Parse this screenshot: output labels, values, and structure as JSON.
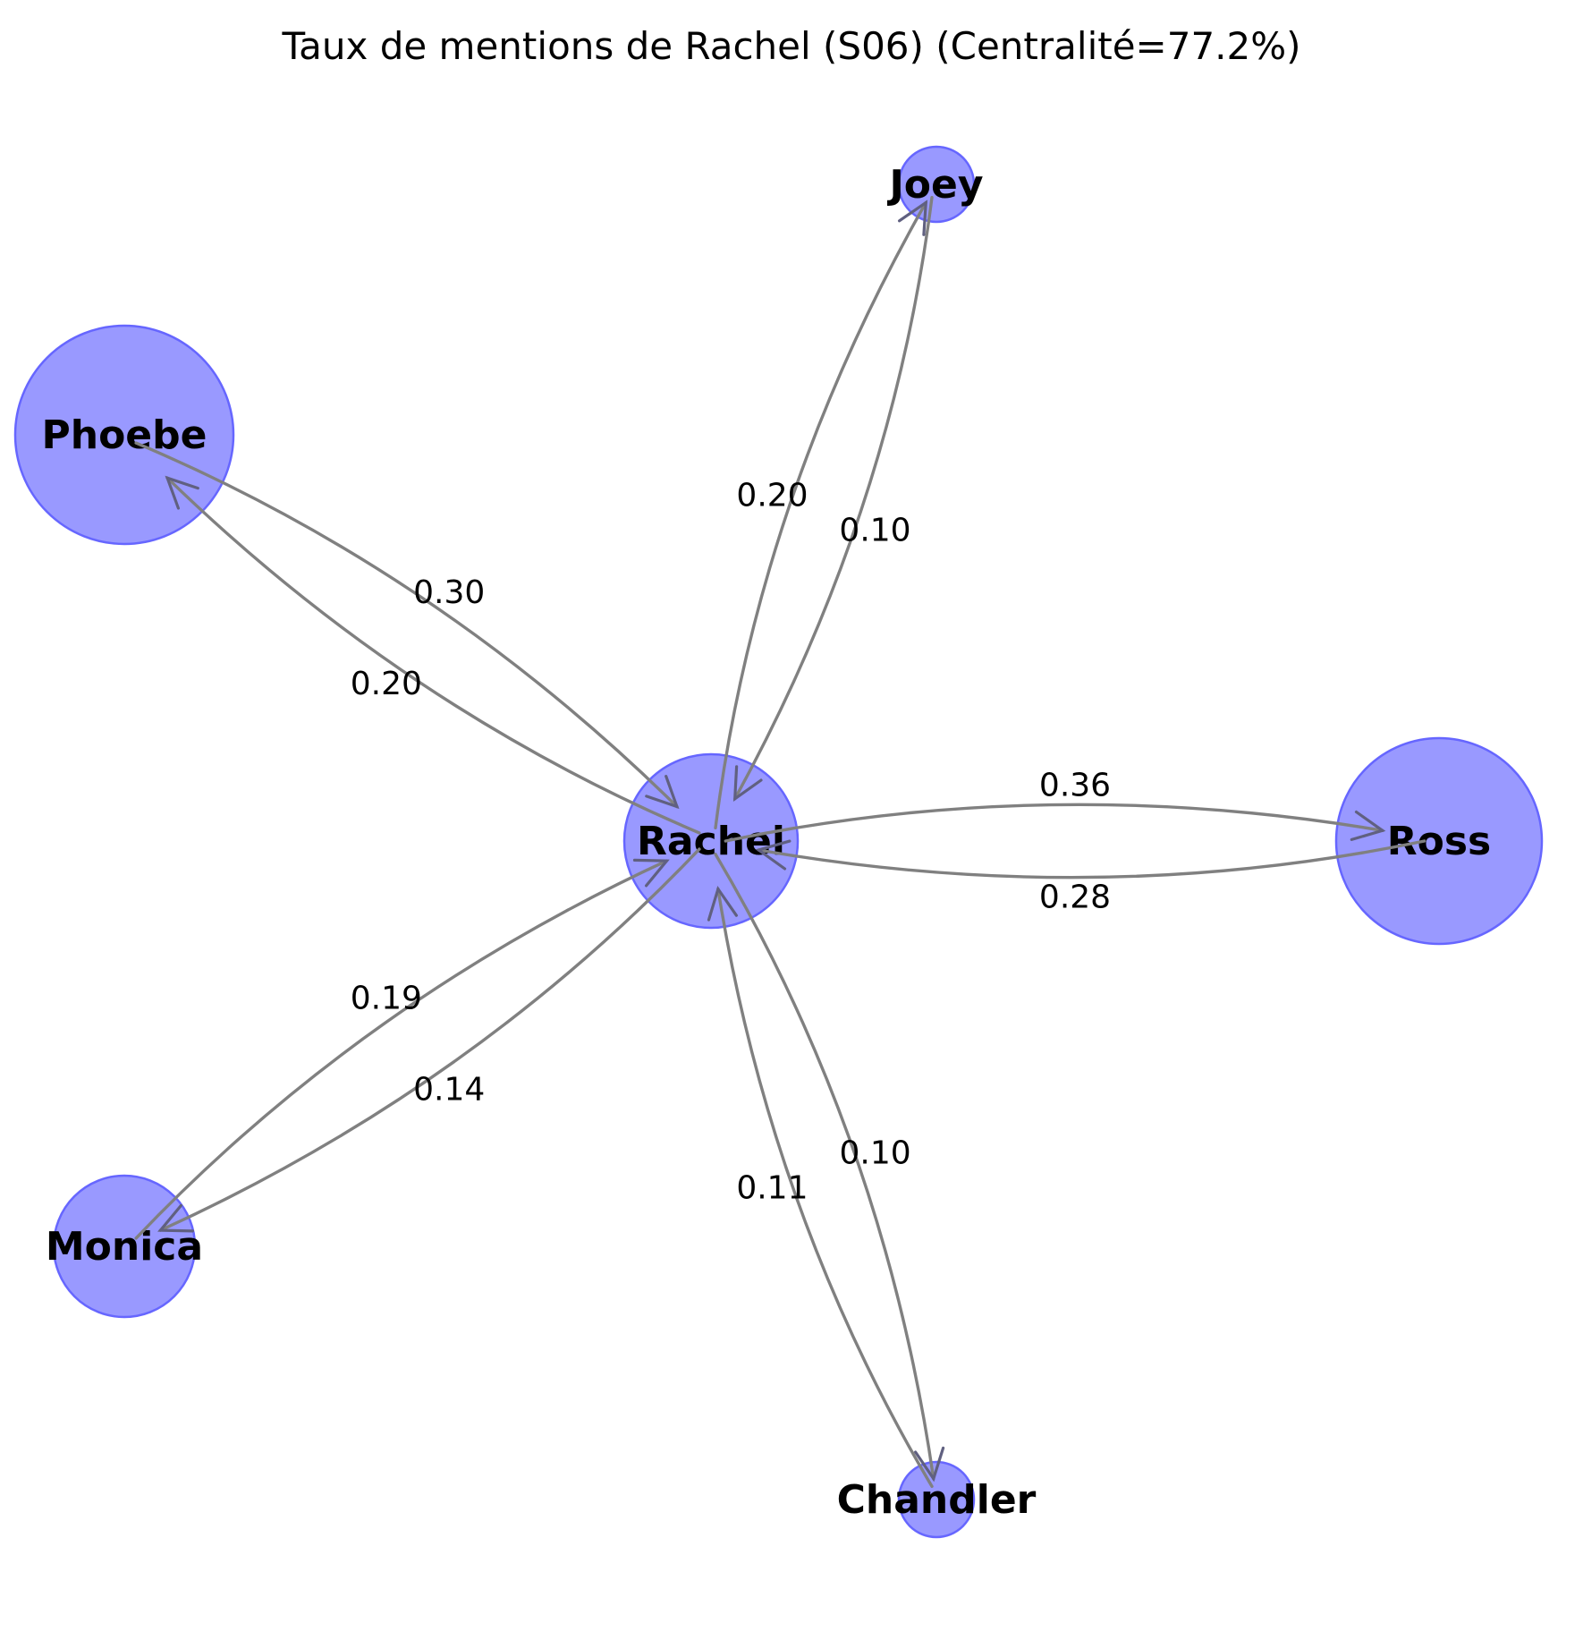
{
  "title": "Taux de mentions de Rachel (S06) (Centralité=77.2%)",
  "colors": {
    "node_fill": "#9999ff",
    "node_stroke": "#6666ff",
    "edge": "#808080"
  },
  "nodes": [
    {
      "id": "Rachel",
      "label": "Rachel"
    },
    {
      "id": "Joey",
      "label": "Joey"
    },
    {
      "id": "Phoebe",
      "label": "Phoebe"
    },
    {
      "id": "Ross",
      "label": "Ross"
    },
    {
      "id": "Monica",
      "label": "Monica"
    },
    {
      "id": "Chandler",
      "label": "Chandler"
    }
  ],
  "edges": [
    {
      "from": "Rachel",
      "to": "Joey",
      "label": "0.20"
    },
    {
      "from": "Joey",
      "to": "Rachel",
      "label": "0.10"
    },
    {
      "from": "Rachel",
      "to": "Phoebe",
      "label": "0.20"
    },
    {
      "from": "Phoebe",
      "to": "Rachel",
      "label": "0.30"
    },
    {
      "from": "Rachel",
      "to": "Ross",
      "label": "0.36"
    },
    {
      "from": "Ross",
      "to": "Rachel",
      "label": "0.28"
    },
    {
      "from": "Rachel",
      "to": "Monica",
      "label": "0.14"
    },
    {
      "from": "Monica",
      "to": "Rachel",
      "label": "0.19"
    },
    {
      "from": "Rachel",
      "to": "Chandler",
      "label": "0.10"
    },
    {
      "from": "Chandler",
      "to": "Rachel",
      "label": "0.11"
    }
  ]
}
